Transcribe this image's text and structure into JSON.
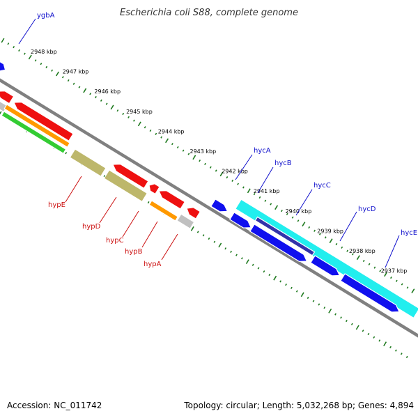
{
  "title": "Escherichia coli S88, complete genome",
  "footer": {
    "accession": "Accession: NC_011742",
    "topology": "Topology: circular; Length: 5,032,268 bp; Genes: 4,894"
  },
  "colors": {
    "background": "#ffffff",
    "backbone": "#808080",
    "ticks": "#1f7a1f",
    "forward_genes": "#1010ee",
    "reverse_genes": "#ee1010",
    "cyan_feature": "#22eeee",
    "green_feature": "#33cc33",
    "orange_feature": "#ff9900",
    "khaki_feature": "#bdb76b",
    "gray_feature": "#c0c0c0",
    "label_blue": "#1010cc",
    "label_red": "#cc1010"
  },
  "kbp_labels": [
    "2948 kbp",
    "2947 kbp",
    "2946 kbp",
    "2945 kbp",
    "2944 kbp",
    "2943 kbp",
    "2942 kbp",
    "2941 kbp",
    "2940 kbp",
    "2939 kbp",
    "2938 kbp",
    "2937 kbp"
  ],
  "gene_labels_top": [
    "ygbA",
    "hycA",
    "hycB",
    "hycC",
    "hycD",
    "hycE"
  ],
  "gene_labels_bottom": [
    "hypE",
    "hypD",
    "hypC",
    "hypB",
    "hypA"
  ]
}
